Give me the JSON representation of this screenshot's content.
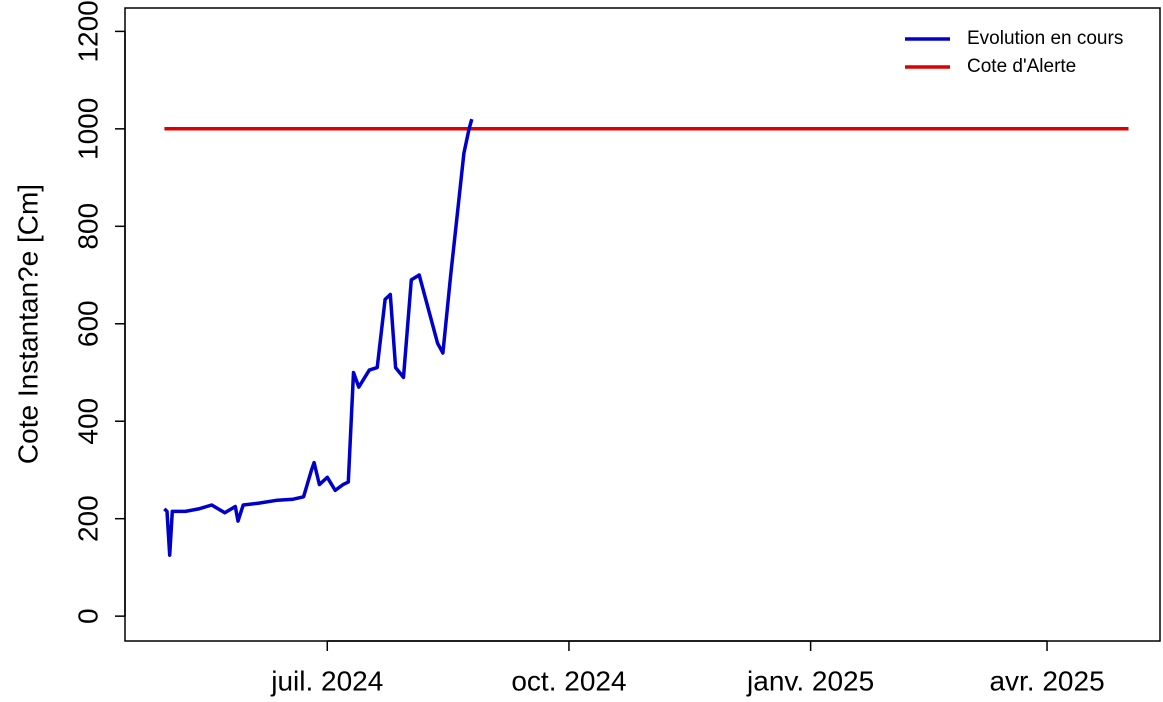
{
  "chart_data": {
    "type": "line",
    "ylabel": "Cote Instantan?e [Cm]",
    "ylim": [
      -51,
      1248
    ],
    "yticks": [
      0,
      200,
      400,
      600,
      800,
      1000,
      1200
    ],
    "xlim": [
      "2024-04-15",
      "2025-05-14"
    ],
    "xticks": [
      {
        "value": "2024-07-01",
        "label": "juil. 2024"
      },
      {
        "value": "2024-10-01",
        "label": "oct. 2024"
      },
      {
        "value": "2025-01-01",
        "label": "janv. 2025"
      },
      {
        "value": "2025-04-01",
        "label": "avr. 2025"
      }
    ],
    "legend": "top-right",
    "series": [
      {
        "name": "Evolution en cours",
        "color": "#0000cd",
        "x": [
          "2024-04-30",
          "2024-05-01",
          "2024-05-02",
          "2024-05-03",
          "2024-05-08",
          "2024-05-13",
          "2024-05-18",
          "2024-05-23",
          "2024-05-27",
          "2024-05-28",
          "2024-05-30",
          "2024-06-05",
          "2024-06-12",
          "2024-06-18",
          "2024-06-22",
          "2024-06-25",
          "2024-06-26",
          "2024-06-28",
          "2024-07-01",
          "2024-07-04",
          "2024-07-07",
          "2024-07-09",
          "2024-07-11",
          "2024-07-13",
          "2024-07-17",
          "2024-07-20",
          "2024-07-23",
          "2024-07-25",
          "2024-07-27",
          "2024-07-30",
          "2024-08-02",
          "2024-08-05",
          "2024-08-09",
          "2024-08-12",
          "2024-08-14",
          "2024-08-17",
          "2024-08-19",
          "2024-08-22",
          "2024-08-24",
          "2024-08-25"
        ],
        "values": [
          220,
          215,
          125,
          215,
          215,
          220,
          228,
          212,
          225,
          195,
          228,
          232,
          238,
          240,
          245,
          300,
          315,
          270,
          285,
          258,
          270,
          275,
          500,
          470,
          505,
          510,
          650,
          660,
          510,
          490,
          690,
          700,
          620,
          560,
          540,
          700,
          800,
          950,
          1000,
          1020
        ]
      },
      {
        "name": "Cote d'Alerte",
        "color": "#dd0000",
        "x": [
          "2024-04-30",
          "2025-05-02"
        ],
        "values": [
          1000,
          1000
        ]
      }
    ]
  }
}
